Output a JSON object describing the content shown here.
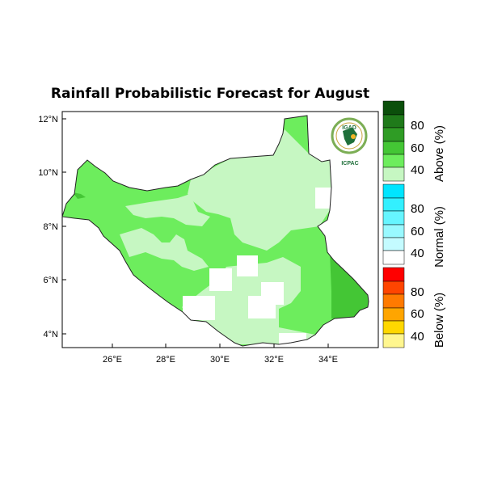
{
  "title": "Rainfall Probabilistic Forecast for August",
  "map": {
    "lat_labels": [
      "12°N",
      "10°N",
      "8°N",
      "6°N",
      "4°N"
    ],
    "lon_labels": [
      "26°E",
      "28°E",
      "30°E",
      "32°E",
      "34°E"
    ],
    "region_colors": {
      "prob_40_50": "#c6f7c2",
      "prob_50_60": "#6ded5d",
      "prob_60_70": "#44c635",
      "white_gap": "#ffffff"
    }
  },
  "logo": {
    "name": "IGAD",
    "subtext": "ICPAC"
  },
  "colorbars": [
    {
      "title": "Above (%)",
      "labels": [
        "80",
        "60",
        "40"
      ],
      "colors": [
        "#0b4f0b",
        "#1f7a1a",
        "#2f9c25",
        "#44c635",
        "#6ded5d",
        "#c6f7c2"
      ]
    },
    {
      "title": "Normal (%)",
      "labels": [
        "80",
        "60",
        "40"
      ],
      "colors": [
        "#00e5ff",
        "#33f0ff",
        "#66f5ff",
        "#99f9ff",
        "#c4fbff",
        "#ffffff"
      ]
    },
    {
      "title": "Below (%)",
      "labels": [
        "80",
        "60",
        "40"
      ],
      "colors": [
        "#ff0000",
        "#ff4500",
        "#ff7a00",
        "#ffa500",
        "#ffd700",
        "#fff68f"
      ]
    }
  ]
}
